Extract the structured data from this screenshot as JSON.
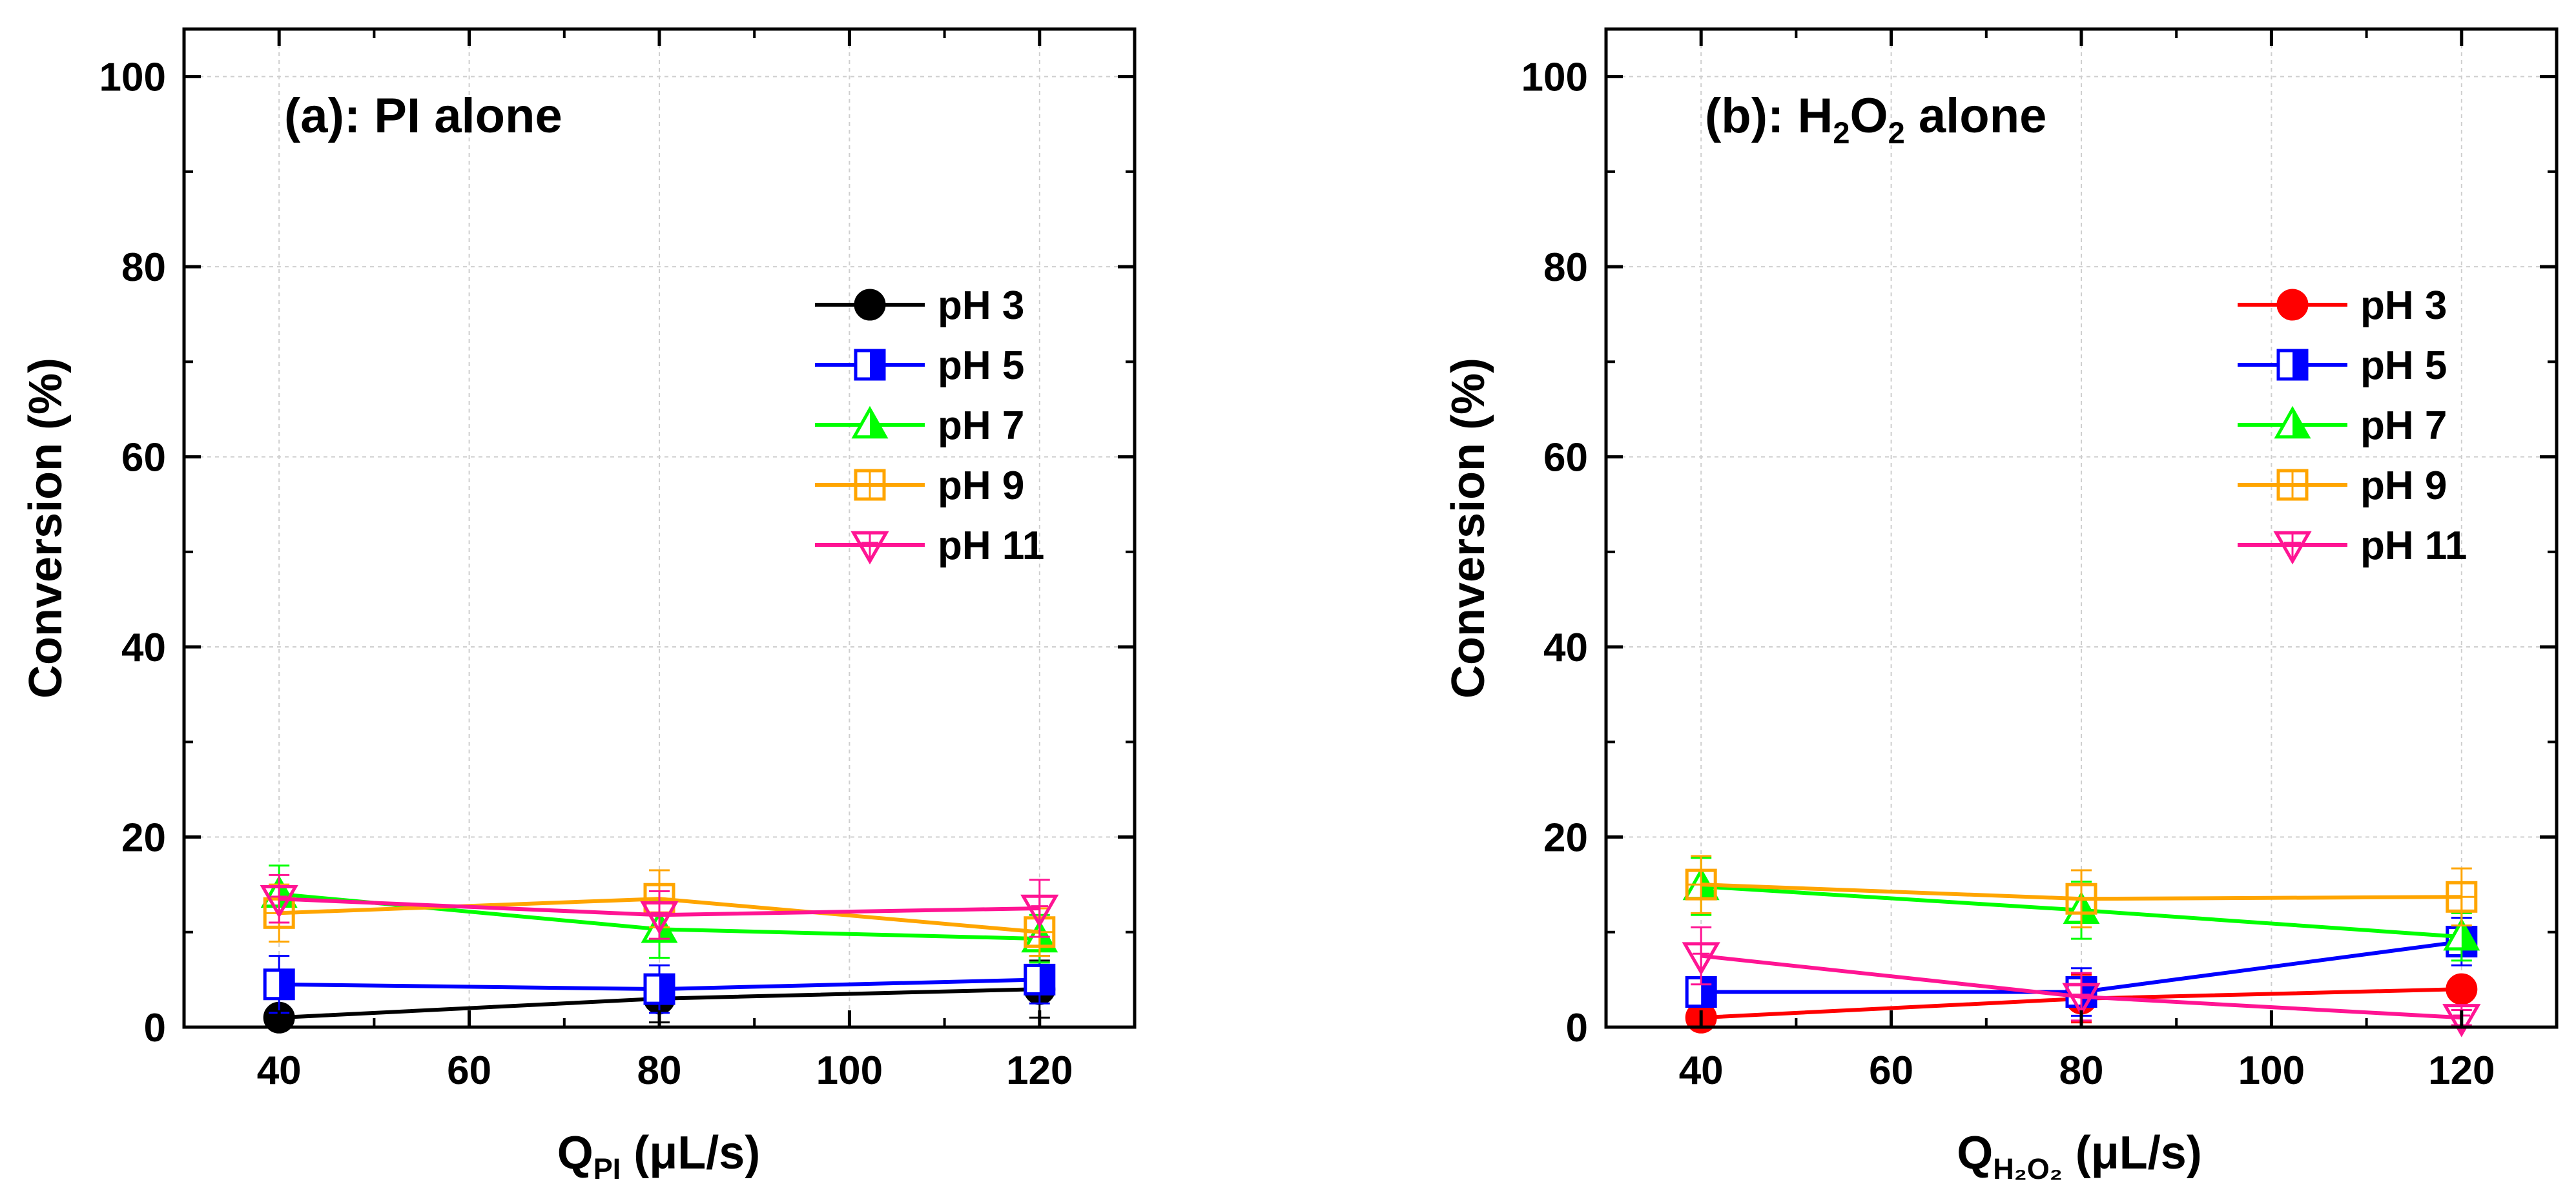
{
  "chart_data": [
    {
      "type": "line",
      "panel_title": "(a): PI alone",
      "xlabel": {
        "main": "Q",
        "sub": "PI",
        "unit": " (μL/s)"
      },
      "ylabel": "Conversion (%)",
      "x": [
        40,
        80,
        120
      ],
      "xlim": [
        30,
        130
      ],
      "ylim": [
        0,
        105
      ],
      "xticks": [
        40,
        60,
        80,
        100,
        120
      ],
      "yticks": [
        0,
        20,
        40,
        60,
        80,
        100
      ],
      "grid": true,
      "legend_position": "right",
      "series": [
        {
          "name": "pH 3",
          "marker": "circle-filled",
          "color": "#000000",
          "values": [
            1.0,
            3.0,
            4.0
          ],
          "errors": [
            0.6,
            2.5,
            3.0
          ]
        },
        {
          "name": "pH 5",
          "marker": "square-half",
          "color": "#0000ff",
          "values": [
            4.5,
            4.0,
            5.0
          ],
          "errors": [
            3.0,
            2.5,
            2.5
          ]
        },
        {
          "name": "pH 7",
          "marker": "triangle-up-half",
          "color": "#00ff00",
          "values": [
            14.0,
            10.3,
            9.3
          ],
          "errors": [
            3.0,
            3.0,
            2.5
          ]
        },
        {
          "name": "pH 9",
          "marker": "square-cross",
          "color": "#ffa500",
          "values": [
            12.0,
            13.5,
            10.0
          ],
          "errors": [
            3.0,
            3.0,
            2.5
          ]
        },
        {
          "name": "pH 11",
          "marker": "triangle-down-open",
          "color": "#ff1493",
          "values": [
            13.5,
            11.8,
            12.5
          ],
          "errors": [
            2.5,
            2.5,
            3.0
          ]
        }
      ]
    },
    {
      "type": "line",
      "panel_title": {
        "pre": "(b): H",
        "s1": "2",
        "mid": "O",
        "s2": "2",
        "post": " alone"
      },
      "xlabel": {
        "main": "Q",
        "sub": "H₂O₂",
        "unit": " (μL/s)"
      },
      "ylabel": "Conversion (%)",
      "x": [
        40,
        80,
        120
      ],
      "xlim": [
        30,
        130
      ],
      "ylim": [
        0,
        105
      ],
      "xticks": [
        40,
        60,
        80,
        100,
        120
      ],
      "yticks": [
        0,
        20,
        40,
        60,
        80,
        100
      ],
      "grid": true,
      "legend_position": "right",
      "series": [
        {
          "name": "pH 3",
          "marker": "circle-filled",
          "color": "#ff0000",
          "values": [
            1.0,
            3.0,
            4.0
          ],
          "errors": [
            0.6,
            2.5,
            1.0
          ]
        },
        {
          "name": "pH 5",
          "marker": "square-half",
          "color": "#0000ff",
          "values": [
            3.7,
            3.7,
            9.0
          ],
          "errors": [
            1.0,
            2.5,
            2.5
          ]
        },
        {
          "name": "pH 7",
          "marker": "triangle-up-half",
          "color": "#00ff00",
          "values": [
            14.8,
            12.3,
            9.5
          ],
          "errors": [
            3.0,
            3.0,
            2.5
          ]
        },
        {
          "name": "pH 9",
          "marker": "square-cross",
          "color": "#ffa500",
          "values": [
            15.0,
            13.5,
            13.7
          ],
          "errors": [
            3.0,
            3.0,
            3.0
          ]
        },
        {
          "name": "pH 11",
          "marker": "triangle-down-open",
          "color": "#ff1493",
          "values": [
            7.5,
            3.2,
            1.0
          ],
          "errors": [
            3.0,
            2.5,
            0.8
          ]
        }
      ]
    }
  ]
}
